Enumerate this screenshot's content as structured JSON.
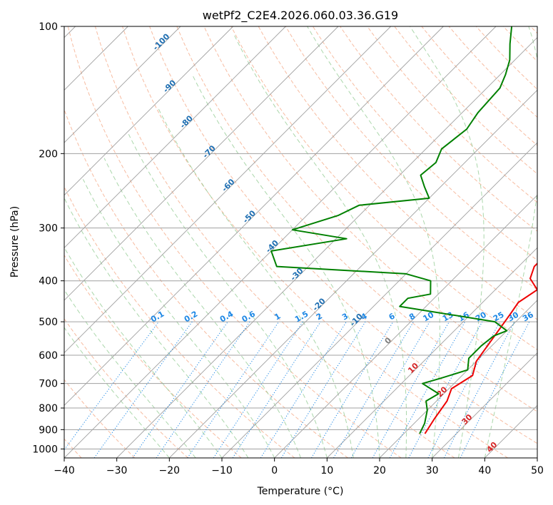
{
  "chart_data": {
    "type": "line",
    "title": "wetPf2_C2E4.2026.060.03.36.G19",
    "xlabel": "Temperature (°C)",
    "ylabel": "Pressure (hPa)",
    "xlim": [
      -40,
      50
    ],
    "ylim": [
      1050,
      100
    ],
    "y_scale": "log",
    "x_ticks": [
      -40,
      -30,
      -20,
      -10,
      0,
      10,
      20,
      30,
      40,
      50
    ],
    "x_tick_labels": [
      "−40",
      "−30",
      "−20",
      "−10",
      "0",
      "10",
      "20",
      "30",
      "40",
      "50"
    ],
    "y_ticks": [
      100,
      200,
      300,
      400,
      500,
      600,
      700,
      800,
      900,
      1000
    ],
    "y_tick_labels": [
      "100",
      "200",
      "300",
      "400",
      "500",
      "600",
      "700",
      "800",
      "900",
      "1000"
    ],
    "grid": true,
    "series": [
      {
        "color": "#ee0000",
        "points": [
          [
            24.0,
            920
          ],
          [
            23.0,
            850
          ],
          [
            22.0,
            770
          ],
          [
            20.5,
            720
          ],
          [
            22.0,
            670
          ],
          [
            20.0,
            620
          ],
          [
            19.0,
            560
          ],
          [
            17.5,
            480
          ],
          [
            16.8,
            450
          ],
          [
            18.0,
            420
          ],
          [
            14.5,
            395
          ],
          [
            13.0,
            370
          ],
          [
            13.0,
            340
          ],
          [
            11.5,
            300
          ],
          [
            9.0,
            265
          ],
          [
            5.0,
            225
          ],
          [
            1.0,
            190
          ],
          [
            -3.0,
            160
          ],
          [
            -8.0,
            140
          ],
          [
            -11.0,
            125
          ],
          [
            -14.0,
            112
          ],
          [
            -16.0,
            100
          ]
        ]
      },
      {
        "color": "#008000",
        "points": [
          [
            23.0,
            920
          ],
          [
            22.0,
            870
          ],
          [
            20.0,
            810
          ],
          [
            18.0,
            770
          ],
          [
            19.0,
            740
          ],
          [
            14.0,
            700
          ],
          [
            16.5,
            680
          ],
          [
            20.0,
            650
          ],
          [
            18.0,
            610
          ],
          [
            18.0,
            570
          ],
          [
            18.5,
            540
          ],
          [
            20.0,
            525
          ],
          [
            16.0,
            500
          ],
          [
            -5.0,
            460
          ],
          [
            -5.0,
            440
          ],
          [
            -1.5,
            430
          ],
          [
            -4.0,
            400
          ],
          [
            -10.0,
            385
          ],
          [
            -36.0,
            370
          ],
          [
            -40.0,
            340
          ],
          [
            -28.0,
            318
          ],
          [
            -40.0,
            303
          ],
          [
            -34.0,
            280
          ],
          [
            -32.0,
            265
          ],
          [
            -20.0,
            255
          ],
          [
            -23.0,
            240
          ],
          [
            -26.0,
            225
          ],
          [
            -25.5,
            210
          ],
          [
            -27.0,
            195
          ],
          [
            -26.0,
            175
          ],
          [
            -27.0,
            160
          ],
          [
            -27.5,
            140
          ],
          [
            -29.0,
            130
          ],
          [
            -31.0,
            120
          ],
          [
            -34.0,
            110
          ],
          [
            -37.0,
            100
          ]
        ]
      }
    ],
    "isotherm_labels": [
      "-100",
      "-90",
      "-80",
      "-70",
      "-60",
      "-50",
      "-40",
      "-30",
      "-20",
      "-10",
      "0",
      "10",
      "20",
      "30",
      "40"
    ],
    "mixing_ratio_labels": [
      "0.1",
      "0.2",
      "0.4",
      "0.6",
      "1",
      "1.5",
      "2",
      "3",
      "4",
      "6",
      "8",
      "10",
      "13",
      "16",
      "20",
      "25",
      "30",
      "36"
    ],
    "colors": {
      "temperature": "#ee0000",
      "dewpoint": "#008000",
      "isotherm_label_negative": "#1f6fb2",
      "isotherm_label_zero": "#7f7f7f",
      "isotherm_label_positive": "#d62728",
      "mixing_ratio": "#1e88e5",
      "dry_adiabat": "#f4a582",
      "moist_adiabat": "#8fc98f",
      "grid": "#a0a0a0"
    }
  }
}
